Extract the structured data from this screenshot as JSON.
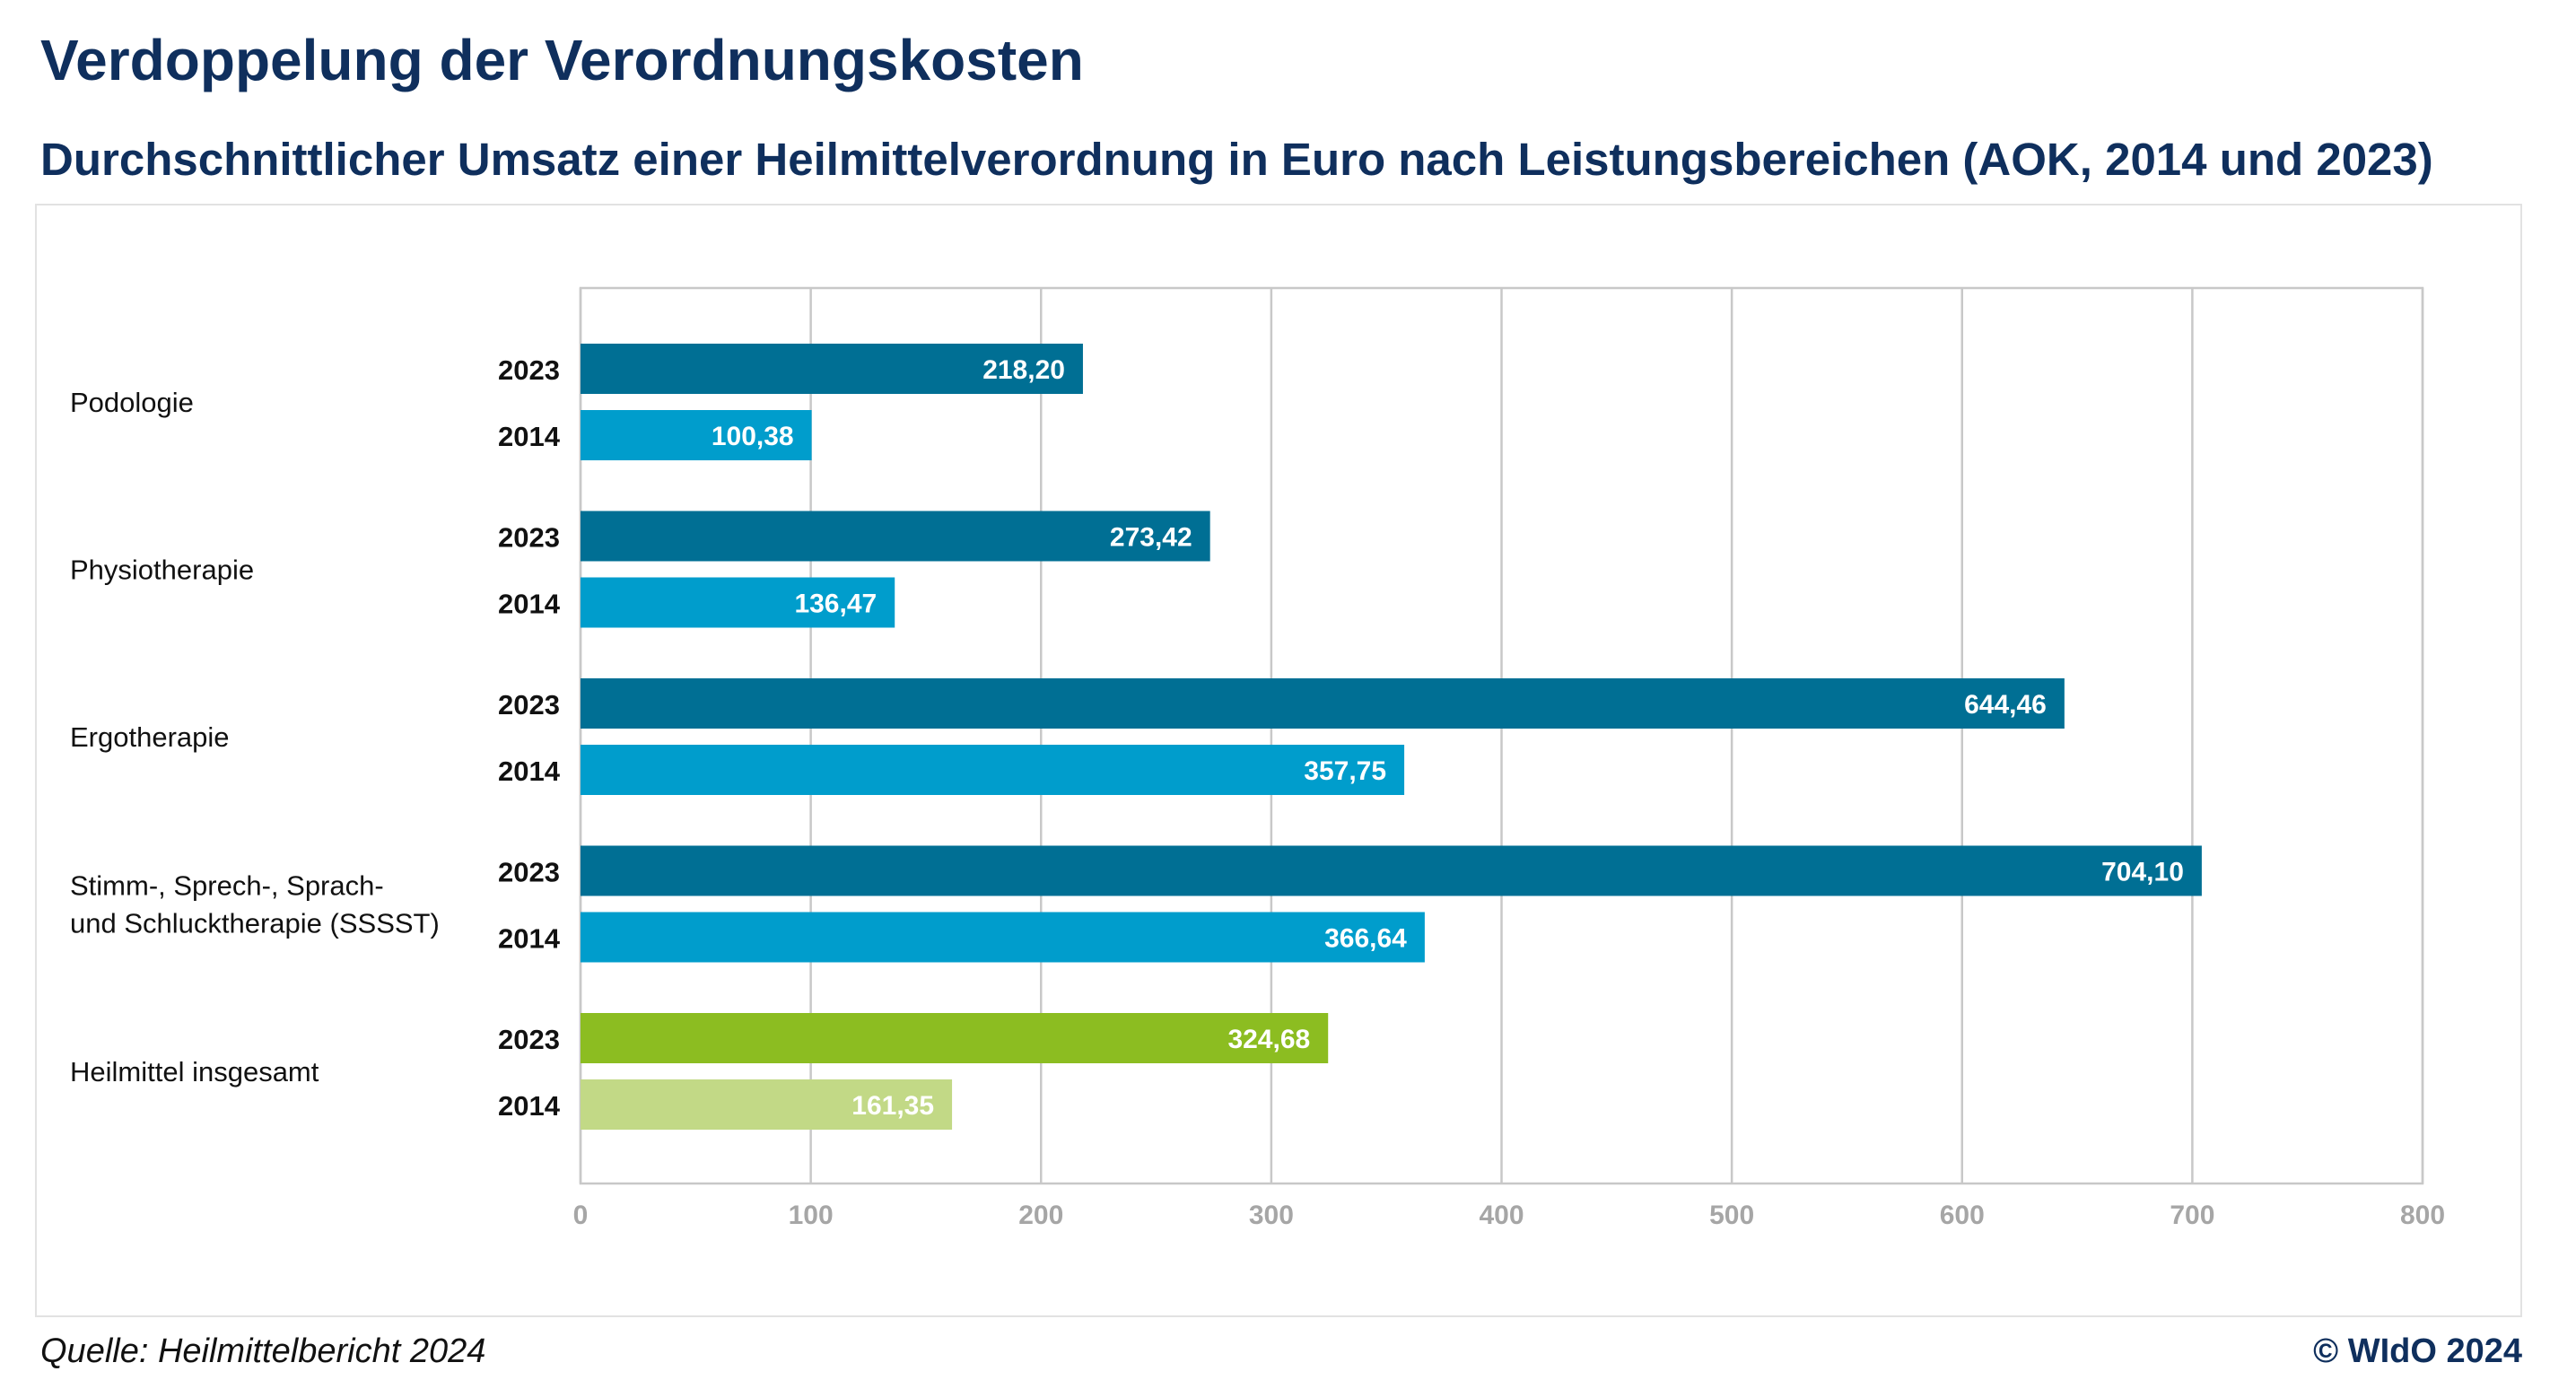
{
  "header": {
    "title": "Verdoppelung der Verordnungskosten",
    "subtitle": "Durchschnittlicher Umsatz einer Heilmittelverordnung in Euro nach Leistungsbereichen (AOK, 2014 und 2023)"
  },
  "footer": {
    "source": "Quelle: Heilmittelbericht 2024",
    "copyright": "© WIdO 2024"
  },
  "chart_data": {
    "type": "bar",
    "orientation": "horizontal",
    "title": "Durchschnittlicher Umsatz einer Heilmittelverordnung in Euro nach Leistungsbereichen (AOK, 2014 und 2023)",
    "categories": [
      "Podologie",
      "Physiotherapie",
      "Ergotherapie",
      "Stimm-, Sprech-, Sprach- und Schlucktherapie (SSSST)",
      "Heilmittel insgesamt"
    ],
    "category_lines": [
      [
        "Podologie"
      ],
      [
        "Physiotherapie"
      ],
      [
        "Ergotherapie"
      ],
      [
        "Stimm-, Sprech-, Sprach-",
        "und Schlucktherapie (SSSST)"
      ],
      [
        "Heilmittel insgesamt"
      ]
    ],
    "series": [
      {
        "name": "2023",
        "values": [
          218.2,
          273.42,
          644.46,
          704.1,
          324.68
        ],
        "labels": [
          "218,20",
          "273,42",
          "644,46",
          "704,10",
          "324,68"
        ],
        "colors": [
          "#006f94",
          "#006f94",
          "#006f94",
          "#006f94",
          "#8cbd21"
        ]
      },
      {
        "name": "2014",
        "values": [
          100.38,
          136.47,
          357.75,
          366.64,
          161.35
        ],
        "labels": [
          "100,38",
          "136,47",
          "357,75",
          "366,64",
          "161,35"
        ],
        "colors": [
          "#009dcc",
          "#009dcc",
          "#009dcc",
          "#009dcc",
          "#c2d986"
        ]
      }
    ],
    "xlim": [
      0,
      800
    ],
    "xticks": [
      0,
      100,
      200,
      300,
      400,
      500,
      600,
      700,
      800
    ],
    "grid": true,
    "xlabel": "",
    "ylabel": ""
  }
}
